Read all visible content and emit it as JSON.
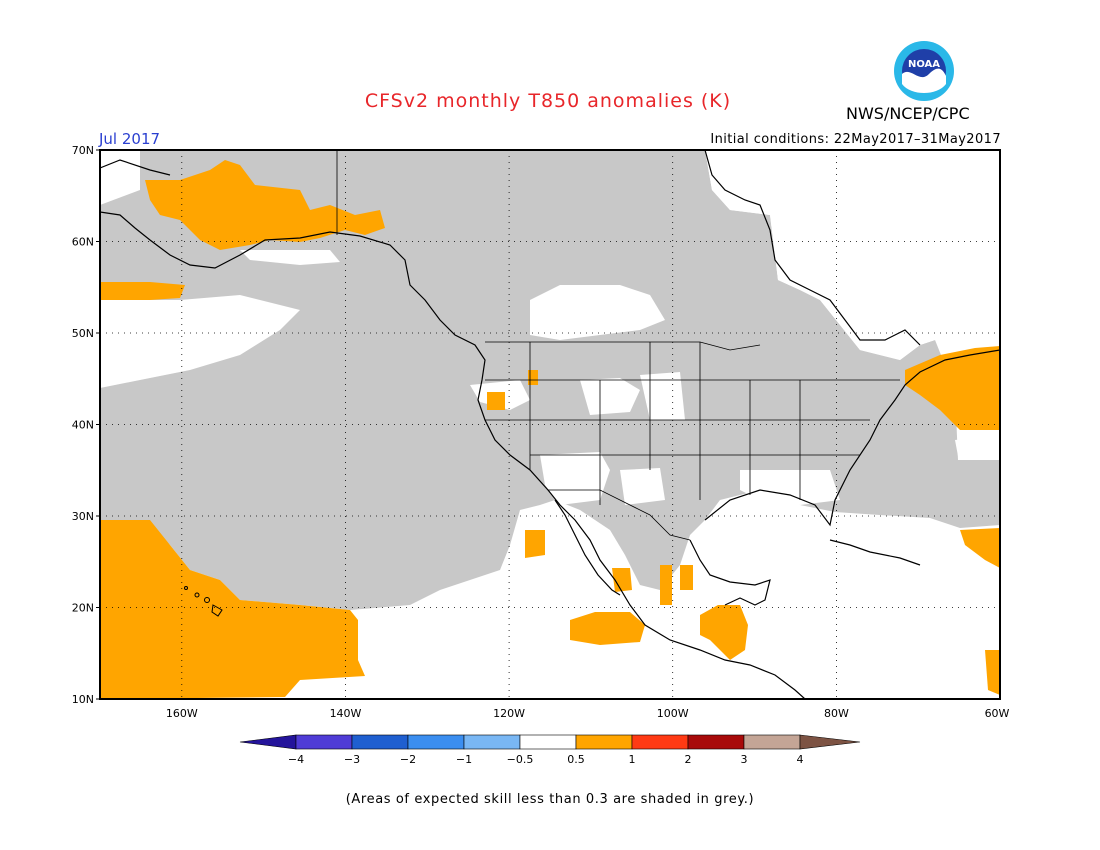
{
  "header": {
    "title": "CFSv2 monthly T850 anomalies (K)",
    "organization": "NWS/NCEP/CPC",
    "logo_text": "NOAA",
    "valid_month": "Jul 2017",
    "initial_conditions": "Initial conditions: 22May2017–31May2017"
  },
  "axes": {
    "lat_labels": [
      "70N",
      "60N",
      "50N",
      "40N",
      "30N",
      "20N",
      "10N"
    ],
    "lon_labels": [
      "160W",
      "140W",
      "120W",
      "100W",
      "80W",
      "60W"
    ]
  },
  "colorbar": {
    "labels": [
      "−4",
      "−3",
      "−2",
      "−1",
      "−0.5",
      "0.5",
      "1",
      "2",
      "3",
      "4"
    ],
    "colors": [
      "#24149b",
      "#4f3cd6",
      "#1f5fd0",
      "#3b8ef0",
      "#79b7f4",
      "#ffffff",
      "#ffa500",
      "#ff3a14",
      "#a80a0a",
      "#c4a596",
      "#7d5343"
    ]
  },
  "colors": {
    "low_skill": "#c8c8c8",
    "positive_anomaly": "#ffa500",
    "title": "#e8262a",
    "month": "#2a3fd0"
  },
  "footnote": "(Areas of expected skill less than 0.3 are shaded in grey.)"
}
